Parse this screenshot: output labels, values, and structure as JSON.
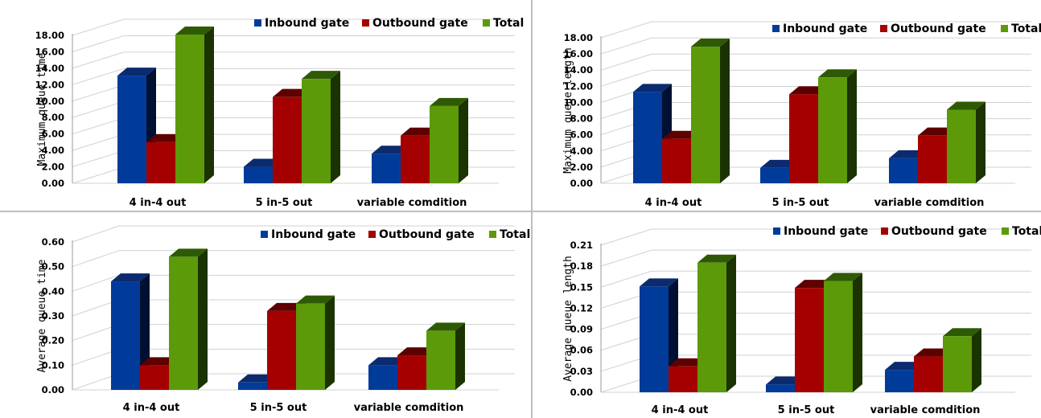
{
  "chart_data": [
    {
      "type": "bar",
      "ylabel": "Maximum queue time",
      "categories": [
        "4 in-4 out",
        "5 in-5 out",
        "variable comdition"
      ],
      "ylim": [
        0,
        18
      ],
      "yticks": [
        "0.00",
        "2.00",
        "4.00",
        "6.00",
        "8.00",
        "10.00",
        "12.00",
        "14.00",
        "16.00",
        "18.00"
      ],
      "grid": true,
      "legend_position": "top-right",
      "series": [
        {
          "name": "Inbound gate",
          "values": [
            13.1,
            2.0,
            3.6
          ]
        },
        {
          "name": "Outbound gate",
          "values": [
            5.0,
            10.5,
            5.8
          ]
        },
        {
          "name": "Total",
          "values": [
            18.1,
            12.7,
            9.4
          ]
        }
      ]
    },
    {
      "type": "bar",
      "ylabel": "Maximum queue length",
      "categories": [
        "4 in-4 out",
        "5 in-5 out",
        "variable comdition"
      ],
      "ylim": [
        0,
        18
      ],
      "yticks": [
        "0.00",
        "2.00",
        "4.00",
        "6.00",
        "8.00",
        "10.00",
        "12.00",
        "14.00",
        "16.00",
        "18.00"
      ],
      "grid": true,
      "legend_position": "top-right",
      "series": [
        {
          "name": "Inbound gate",
          "values": [
            11.3,
            1.9,
            3.1
          ]
        },
        {
          "name": "Outbound gate",
          "values": [
            5.5,
            11.0,
            5.9
          ]
        },
        {
          "name": "Total",
          "values": [
            16.9,
            13.1,
            9.1
          ]
        }
      ]
    },
    {
      "type": "bar",
      "ylabel": "Average queue time",
      "categories": [
        "4 in-4 out",
        "5 in-5 out",
        "variable comdition"
      ],
      "ylim": [
        0,
        0.6
      ],
      "yticks": [
        "0.00",
        "0.10",
        "0.20",
        "0.30",
        "0.40",
        "0.50",
        "0.60"
      ],
      "grid": true,
      "legend_position": "top-right",
      "series": [
        {
          "name": "Inbound gate",
          "values": [
            0.44,
            0.03,
            0.1
          ]
        },
        {
          "name": "Outbound gate",
          "values": [
            0.1,
            0.32,
            0.14
          ]
        },
        {
          "name": "Total",
          "values": [
            0.54,
            0.35,
            0.24
          ]
        }
      ]
    },
    {
      "type": "bar",
      "ylabel": "Average queue length",
      "categories": [
        "4 in-4 out",
        "5 in-5 out",
        "variable comdition"
      ],
      "ylim": [
        0,
        0.21
      ],
      "yticks": [
        "0.00",
        "0.03",
        "0.06",
        "0.09",
        "0.12",
        "0.15",
        "0.18",
        "0.21"
      ],
      "grid": true,
      "legend_position": "top-right",
      "series": [
        {
          "name": "Inbound gate",
          "values": [
            0.151,
            0.011,
            0.032
          ]
        },
        {
          "name": "Outbound gate",
          "values": [
            0.037,
            0.149,
            0.051
          ]
        },
        {
          "name": "Total",
          "values": [
            0.185,
            0.159,
            0.08
          ]
        }
      ]
    }
  ],
  "colors": {
    "series_front": [
      "#003b9a",
      "#a50000",
      "#5c9a0a"
    ],
    "series_side": [
      "#001032",
      "#3d0000",
      "#1a3300"
    ],
    "series_top": [
      "#0c2a6e",
      "#5e0000",
      "#2f5a05"
    ],
    "grid": "#d0d0d0",
    "axis": "#9a9a9a"
  }
}
